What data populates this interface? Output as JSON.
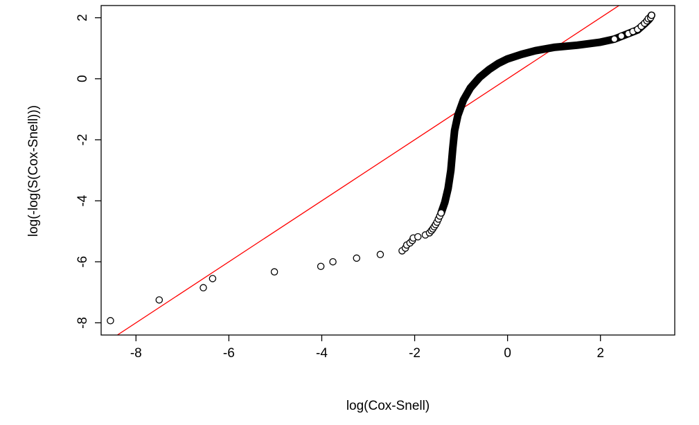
{
  "chart_data": {
    "type": "scatter",
    "title": "",
    "xlabel": "log(Cox-Snell)",
    "ylabel": "log(-log(S(Cox-Snell)))",
    "xlim": [
      -8.75,
      3.6
    ],
    "ylim": [
      -8.4,
      2.4
    ],
    "x_ticks": [
      -8,
      -6,
      -4,
      -2,
      0,
      2
    ],
    "y_ticks": [
      -8,
      -6,
      -4,
      -2,
      0,
      2
    ],
    "x_tick_labels": [
      "-8",
      "-6",
      "-4",
      "-2",
      "0",
      "2"
    ],
    "y_tick_labels": [
      "-8",
      "-6",
      "-4",
      "-2",
      "0",
      "2"
    ],
    "grid": false,
    "point_color": "#000000",
    "reference_line": {
      "intercept": 0,
      "slope": 1,
      "color": "#ff0000"
    },
    "points": [
      [
        -8.55,
        -7.93
      ],
      [
        -7.5,
        -7.25
      ],
      [
        -6.55,
        -6.85
      ],
      [
        -6.35,
        -6.55
      ],
      [
        -5.02,
        -6.33
      ],
      [
        -4.02,
        -6.15
      ],
      [
        -3.76,
        -6.0
      ],
      [
        -3.25,
        -5.88
      ],
      [
        -2.74,
        -5.76
      ],
      [
        -2.27,
        -5.64
      ],
      [
        -2.2,
        -5.55
      ],
      [
        -2.17,
        -5.45
      ],
      [
        -2.1,
        -5.38
      ],
      [
        -2.05,
        -5.3
      ],
      [
        -2.03,
        -5.22
      ],
      [
        -1.93,
        -5.18
      ],
      [
        -1.77,
        -5.12
      ],
      [
        -1.68,
        -5.05
      ],
      [
        -1.64,
        -4.98
      ],
      [
        -1.61,
        -4.92
      ],
      [
        -1.58,
        -4.85
      ],
      [
        -1.55,
        -4.78
      ],
      [
        -1.52,
        -4.7
      ],
      [
        -1.49,
        -4.6
      ],
      [
        -1.46,
        -4.5
      ],
      [
        -1.43,
        -4.4
      ]
    ],
    "dense_curve": [
      [
        -1.43,
        -4.4
      ],
      [
        -1.35,
        -4.05
      ],
      [
        -1.28,
        -3.6
      ],
      [
        -1.22,
        -3.0
      ],
      [
        -1.18,
        -2.3
      ],
      [
        -1.14,
        -1.7
      ],
      [
        -1.07,
        -1.2
      ],
      [
        -0.95,
        -0.7
      ],
      [
        -0.8,
        -0.3
      ],
      [
        -0.6,
        0.05
      ],
      [
        -0.4,
        0.3
      ],
      [
        -0.2,
        0.5
      ],
      [
        0.0,
        0.65
      ],
      [
        0.3,
        0.8
      ],
      [
        0.6,
        0.92
      ],
      [
        1.0,
        1.03
      ],
      [
        1.5,
        1.1
      ],
      [
        2.0,
        1.2
      ],
      [
        2.3,
        1.3
      ],
      [
        2.6,
        1.48
      ],
      [
        2.8,
        1.6
      ],
      [
        2.95,
        1.8
      ],
      [
        3.05,
        1.95
      ],
      [
        3.1,
        2.08
      ]
    ],
    "dense_markers": [
      [
        2.3,
        1.3
      ],
      [
        2.45,
        1.4
      ],
      [
        2.6,
        1.48
      ],
      [
        2.7,
        1.55
      ],
      [
        2.8,
        1.62
      ],
      [
        2.88,
        1.72
      ],
      [
        2.95,
        1.82
      ],
      [
        3.0,
        1.9
      ],
      [
        3.03,
        1.97
      ],
      [
        3.08,
        2.0
      ],
      [
        3.1,
        2.08
      ]
    ]
  }
}
